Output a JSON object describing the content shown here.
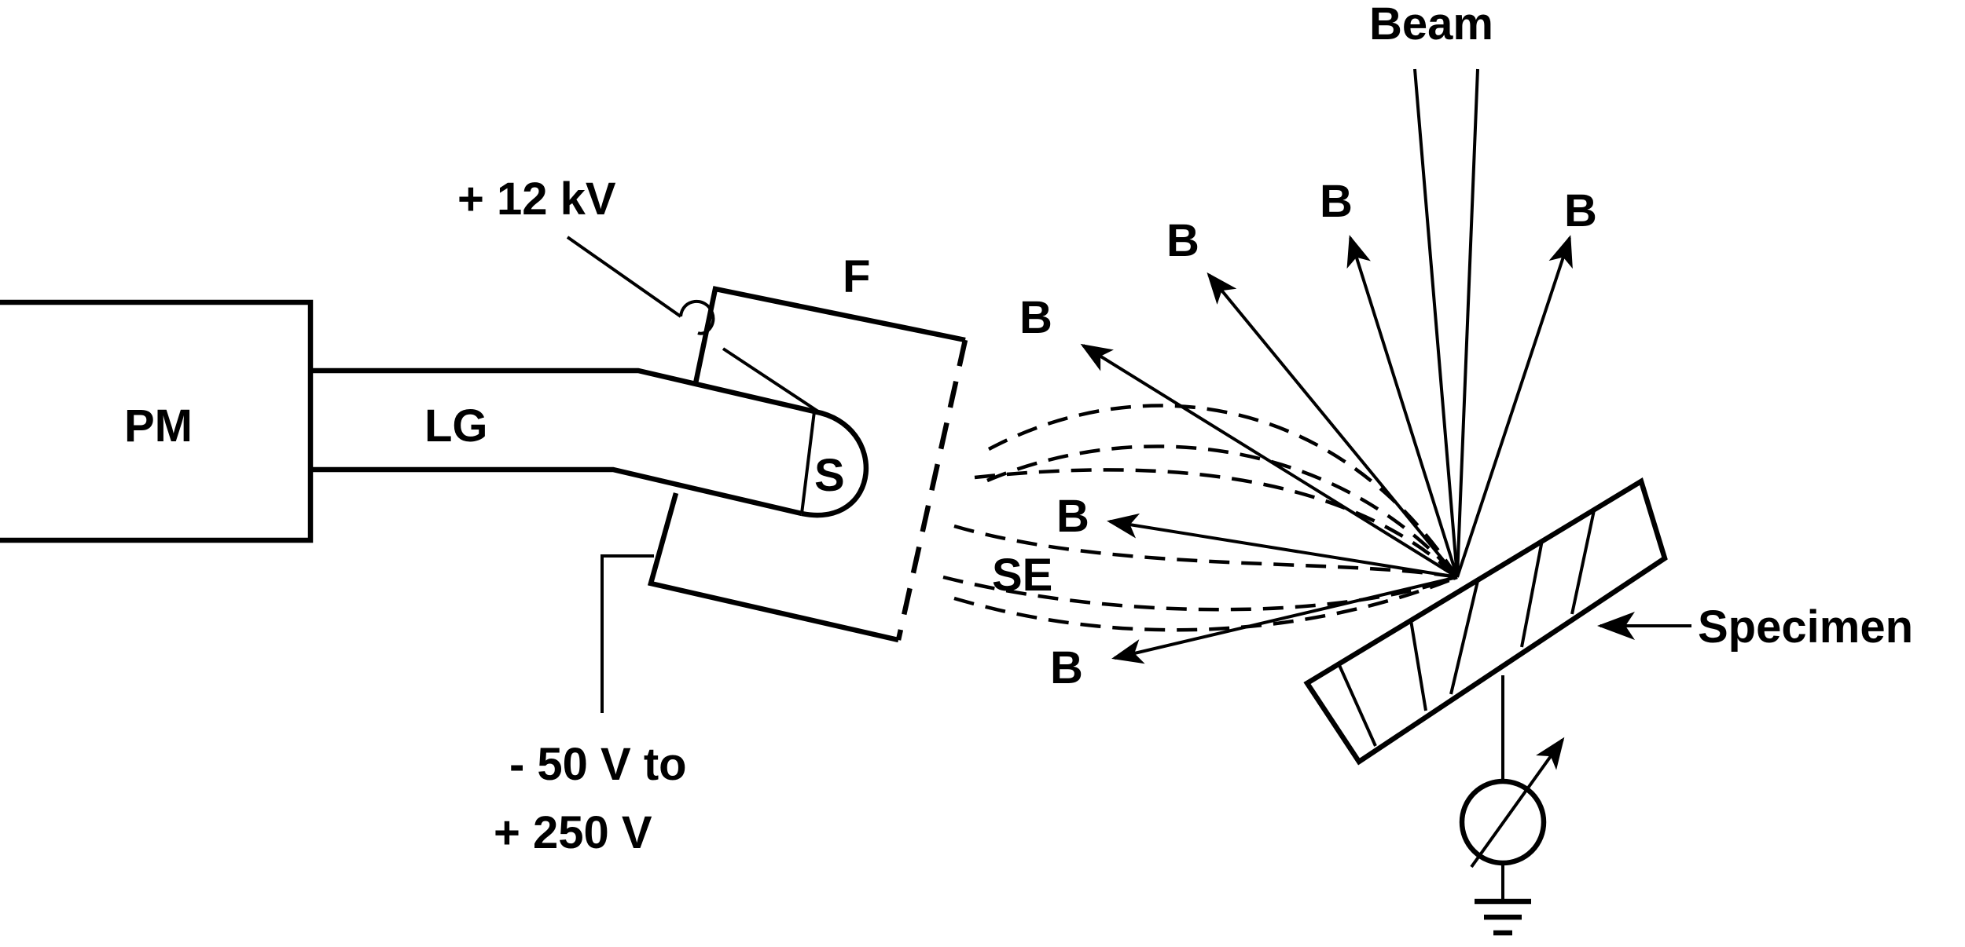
{
  "labels": {
    "pm": "PM",
    "lg": "LG",
    "s": "S",
    "f": "F",
    "plus12kv": "+ 12 kV",
    "bias_line1": "- 50 V to",
    "bias_line2": "+ 250 V",
    "beam": "Beam",
    "se": "SE",
    "specimen": "Specimen",
    "b": "B"
  },
  "colors": {
    "ink": "#000000",
    "background": "#ffffff"
  },
  "icons": {
    "meter": "ammeter-icon",
    "ground": "ground-icon"
  }
}
